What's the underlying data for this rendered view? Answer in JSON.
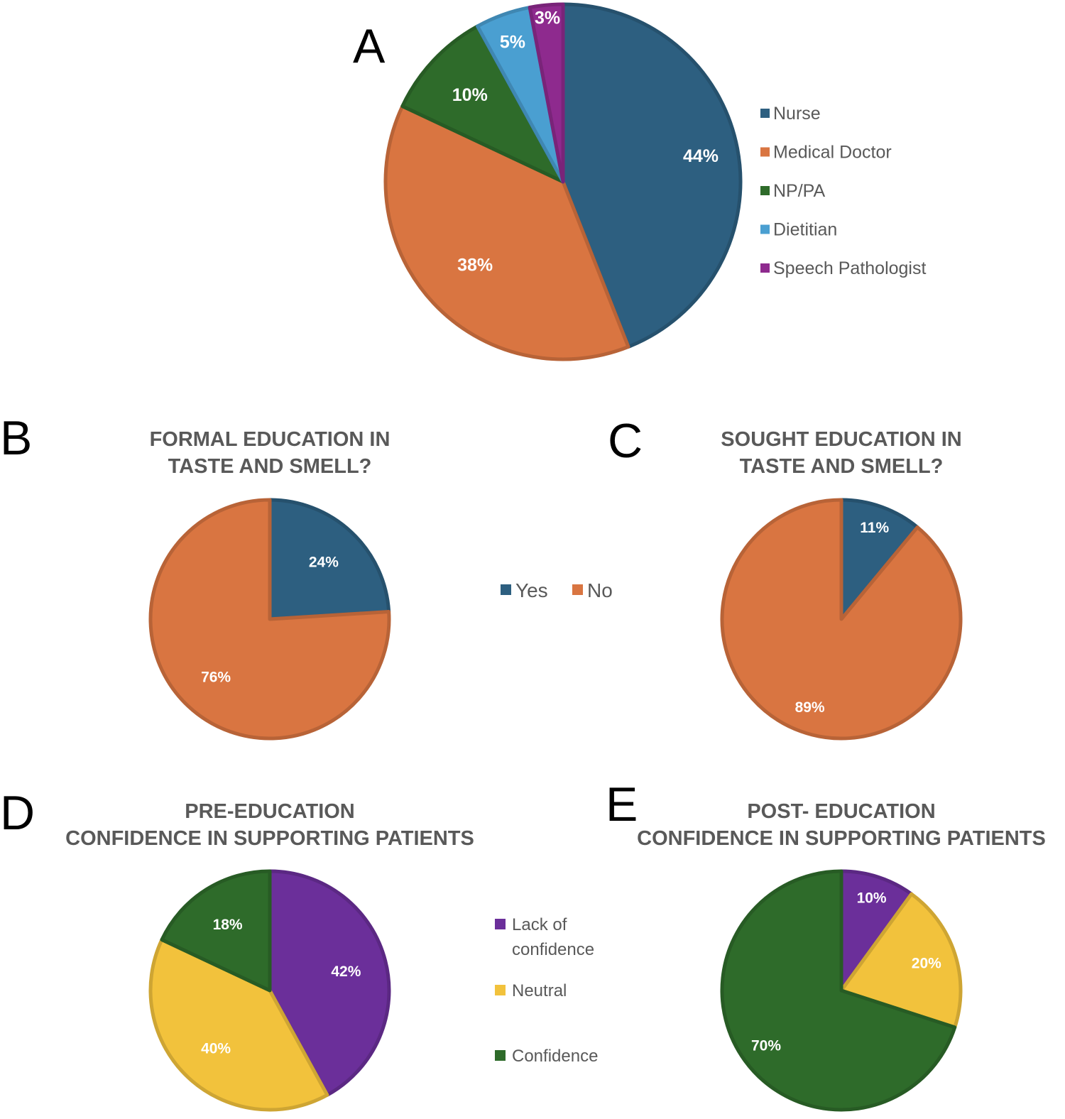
{
  "chart_data": [
    {
      "panel": "A",
      "type": "pie",
      "title": "",
      "categories": [
        "Nurse",
        "Medical Doctor",
        "NP/PA",
        "Dietitian",
        "Speech Pathologist"
      ],
      "values": [
        44,
        38,
        10,
        5,
        3
      ],
      "value_labels": [
        "44%",
        "38%",
        "10%",
        "5%",
        "3%"
      ],
      "colors": [
        "#2d5f80",
        "#d97541",
        "#2e6b2a",
        "#4a9fd1",
        "#8e2a8e"
      ],
      "legend": "right"
    },
    {
      "panel": "B",
      "type": "pie",
      "title": [
        "FORMAL EDUCATION IN",
        "TASTE AND SMELL?"
      ],
      "categories": [
        "Yes",
        "No"
      ],
      "values": [
        24,
        76
      ],
      "value_labels": [
        "24%",
        "76%"
      ],
      "colors": [
        "#2d5f80",
        "#d97541"
      ],
      "legend": "shared"
    },
    {
      "panel": "C",
      "type": "pie",
      "title": [
        "SOUGHT EDUCATION IN",
        "TASTE AND SMELL?"
      ],
      "categories": [
        "Yes",
        "No"
      ],
      "values": [
        11,
        89
      ],
      "value_labels": [
        "11%",
        "89%"
      ],
      "colors": [
        "#2d5f80",
        "#d97541"
      ],
      "legend": "shared"
    },
    {
      "panel": "D",
      "type": "pie",
      "title": [
        "PRE-EDUCATION",
        "CONFIDENCE IN SUPPORTING PATIENTS"
      ],
      "categories": [
        "Lack of confidence",
        "Neutral",
        "Confidence"
      ],
      "values": [
        42,
        40,
        18
      ],
      "value_labels": [
        "42%",
        "40%",
        "18%"
      ],
      "colors": [
        "#6b2f9a",
        "#f2c23c",
        "#2e6b2a"
      ],
      "legend": "shared"
    },
    {
      "panel": "E",
      "type": "pie",
      "title": [
        "POST- EDUCATION",
        "CONFIDENCE IN SUPPORTING PATIENTS"
      ],
      "categories": [
        "Lack of confidence",
        "Neutral",
        "Confidence"
      ],
      "values": [
        10,
        20,
        70
      ],
      "value_labels": [
        "10%",
        "20%",
        "70%"
      ],
      "colors": [
        "#6b2f9a",
        "#f2c23c",
        "#2e6b2a"
      ],
      "legend": "shared"
    }
  ],
  "legends": {
    "A": {
      "items": [
        "Nurse",
        "Medical Doctor",
        "NP/PA",
        "Dietitian",
        "Speech Pathologist"
      ],
      "colors": [
        "#2d5f80",
        "#d97541",
        "#2e6b2a",
        "#4a9fd1",
        "#8e2a8e"
      ]
    },
    "BC": {
      "items": [
        "Yes",
        "No"
      ],
      "colors": [
        "#2d5f80",
        "#d97541"
      ]
    },
    "DE": {
      "items": [
        [
          "Lack of",
          "confidence"
        ],
        [
          "Neutral"
        ],
        [
          "Confidence"
        ]
      ],
      "colors": [
        "#6b2f9a",
        "#f2c23c",
        "#2e6b2a"
      ]
    }
  }
}
